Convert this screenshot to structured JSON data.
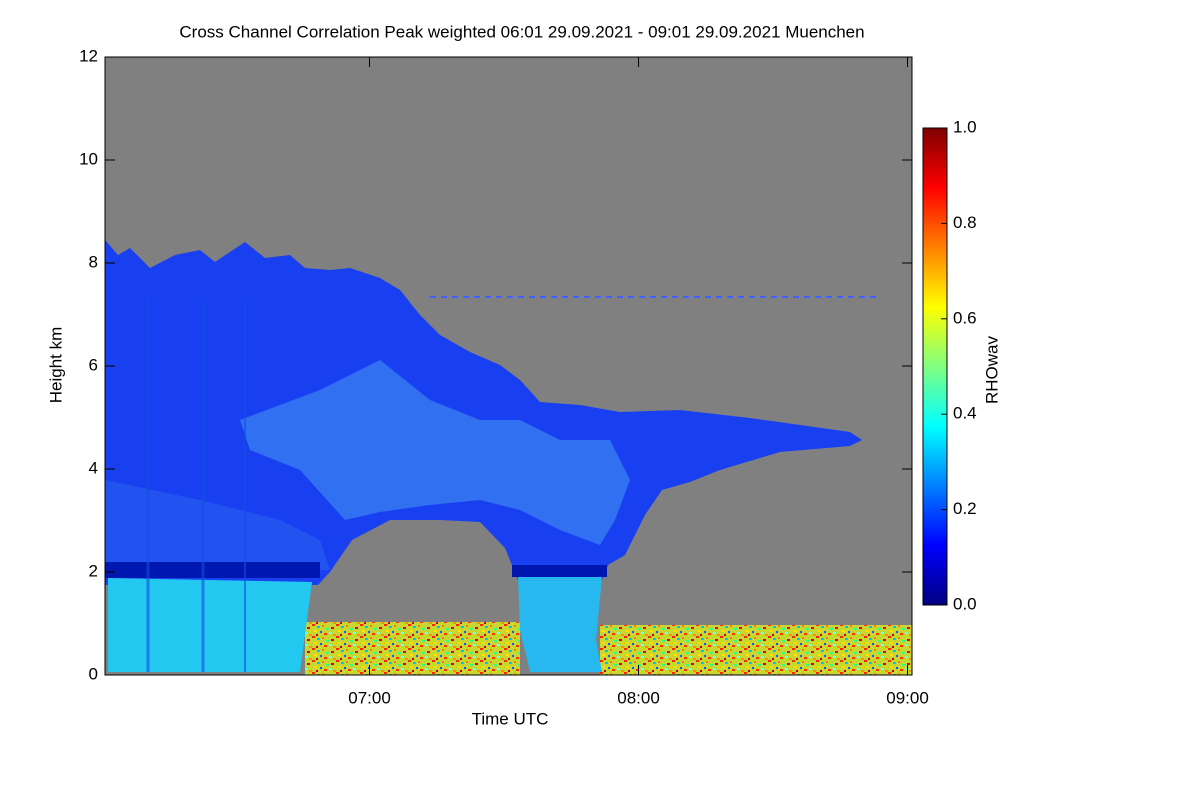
{
  "chart_data": {
    "type": "heatmap",
    "title": "Cross Channel Correlation Peak weighted   06:01 29.09.2021 - 09:01 29.09.2021 Muenchen",
    "x_label": "Time UTC",
    "y_label": "Height km",
    "colorbar_label": "RHOwav",
    "xlim": [
      6.01667,
      9.01667
    ],
    "xticks": [
      {
        "value": 7,
        "label": "07:00"
      },
      {
        "value": 8,
        "label": "08:00"
      },
      {
        "value": 9,
        "label": "09:00"
      }
    ],
    "ylim": [
      0,
      12
    ],
    "yticks": [
      0,
      2,
      4,
      6,
      8,
      10,
      12
    ],
    "zlim": [
      0,
      1
    ],
    "zticks": [
      {
        "value": 0,
        "label": "0.0"
      },
      {
        "value": 0.2,
        "label": "0.2"
      },
      {
        "value": 0.4,
        "label": "0.4"
      },
      {
        "value": 0.6,
        "label": "0.6"
      },
      {
        "value": 0.8,
        "label": "0.8"
      },
      {
        "value": 1,
        "label": "1.0"
      }
    ],
    "colormap": [
      "#00007f",
      "#0000ff",
      "#0080ff",
      "#00ffff",
      "#80ff80",
      "#ffff00",
      "#ff8000",
      "#ff0000",
      "#7f0000"
    ]
  }
}
